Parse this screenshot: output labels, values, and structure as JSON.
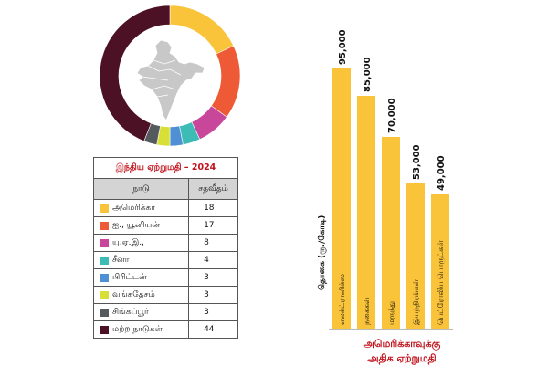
{
  "chart_data": [
    {
      "type": "pie",
      "title": "இந்திய ஏற்றுமதி – 2024",
      "column_headers": [
        "நாடு",
        "சதவீதம்"
      ],
      "slices": [
        {
          "label": "அமெரிக்கா",
          "value": 18,
          "color": "#f9c33a"
        },
        {
          "label": "ஐ., யூனியன்",
          "value": 17,
          "color": "#ef5a36"
        },
        {
          "label": "யு.ஏ.இ.,",
          "value": 8,
          "color": "#c9479a"
        },
        {
          "label": "சீனா",
          "value": 4,
          "color": "#3cbcb4"
        },
        {
          "label": "பிரிட்டன்",
          "value": 3,
          "color": "#4f8fd4"
        },
        {
          "label": "வங்கதேசம்",
          "value": 3,
          "color": "#d8df37"
        },
        {
          "label": "சிங்கப்பூர்",
          "value": 3,
          "color": "#555a5e"
        },
        {
          "label": "மற்ற நாடுகள்",
          "value": 44,
          "color": "#4c1125"
        }
      ]
    },
    {
      "type": "bar",
      "title": "அமெரிக்காவுக்கு அதிக ஏற்றுமதி",
      "ylabel": "தொகை (ரூ./கோடி)",
      "categories": [
        "எலக்ட்ரானிக்ஸ்",
        "நகைகள்",
        "மருந்து",
        "இயந்திரங்கள்",
        "பெட்ரோலிய பொருட்கள்"
      ],
      "values": [
        95000,
        85000,
        70000,
        53000,
        49000
      ],
      "value_labels": [
        "95,000",
        "85,000",
        "70,000",
        "53,000",
        "49,000"
      ],
      "bar_color": "#f9c33a"
    }
  ],
  "bar_caption_lines": [
    "அமெரிக்காவுக்கு",
    "அதிக ஏற்றுமதி"
  ]
}
